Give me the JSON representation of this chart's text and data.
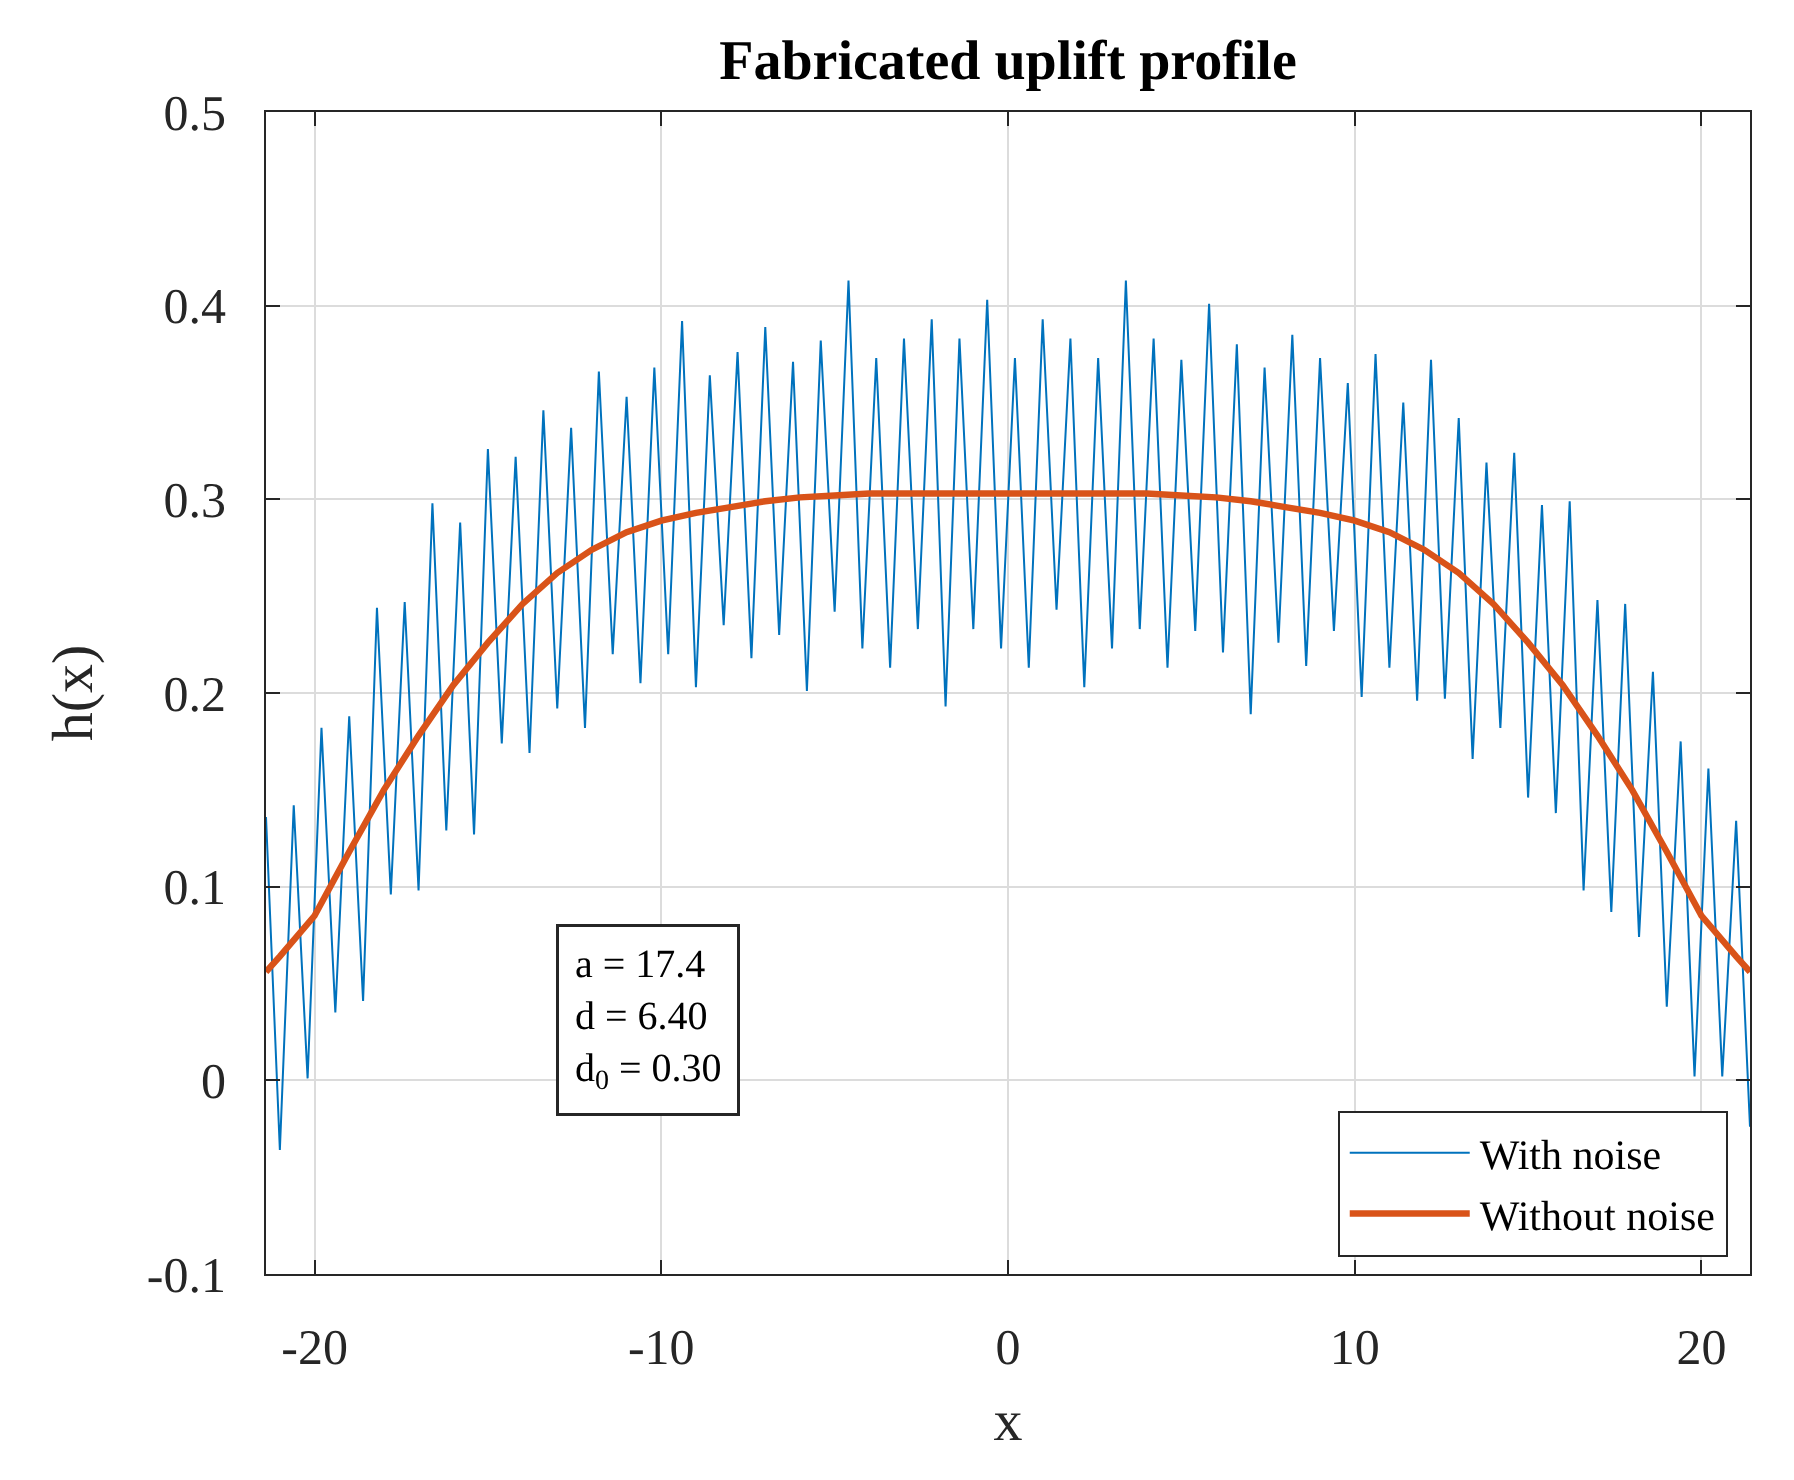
{
  "chart_data": {
    "type": "line",
    "title": "Fabricated uplift profile",
    "xlabel": "x",
    "ylabel": "h(x)",
    "annotations": [
      "a = 17.4",
      "d = 6.40",
      "d$_{0}$ = 0.30"
    ],
    "series": [
      {
        "name": "With noise",
        "color": "#0072bd",
        "x": [
          -21.4,
          -21.0,
          -20.6,
          -20.2,
          -19.8,
          -19.4,
          -19.0,
          -18.6,
          -18.2,
          -17.8,
          -17.4,
          -17.0,
          -16.6,
          -16.2,
          -15.8,
          -15.4,
          -15.0,
          -14.6,
          -14.2,
          -13.8,
          -13.4,
          -13.0,
          -12.6,
          -12.2,
          -11.8,
          -11.4,
          -11.0,
          -10.6,
          -10.2,
          -9.8,
          -9.4,
          -9.0,
          -8.6,
          -8.2,
          -7.8,
          -7.4,
          -7.0,
          -6.6,
          -6.2,
          -5.8,
          -5.4,
          -5.0,
          -4.6,
          -4.2,
          -3.8,
          -3.4,
          -3.0,
          -2.6,
          -2.2,
          -1.8,
          -1.4,
          -1.0,
          -0.6,
          -0.2,
          0.2,
          0.6,
          1.0,
          1.4,
          1.8,
          2.2,
          2.6,
          3.0,
          3.4,
          3.8,
          4.2,
          4.6,
          5.0,
          5.4,
          5.8,
          6.2,
          6.6,
          7.0,
          7.4,
          7.8,
          8.2,
          8.6,
          9.0,
          9.4,
          9.8,
          10.2,
          10.6,
          11.0,
          11.4,
          11.8,
          12.2,
          12.6,
          13.0,
          13.4,
          13.8,
          14.2,
          14.6,
          15.0,
          15.4,
          15.8,
          16.2,
          16.6,
          17.0,
          17.4,
          17.8,
          18.2,
          18.6,
          19.0,
          19.4,
          19.8,
          20.2,
          20.6,
          21.0,
          21.4
        ],
        "values": [
          0.136,
          -0.036,
          0.142,
          0.001,
          0.182,
          0.035,
          0.188,
          0.041,
          0.244,
          0.096,
          0.247,
          0.098,
          0.298,
          0.129,
          0.288,
          0.127,
          0.326,
          0.174,
          0.322,
          0.169,
          0.346,
          0.192,
          0.337,
          0.182,
          0.366,
          0.22,
          0.353,
          0.205,
          0.368,
          0.22,
          0.392,
          0.203,
          0.364,
          0.235,
          0.376,
          0.218,
          0.389,
          0.23,
          0.371,
          0.201,
          0.382,
          0.242,
          0.413,
          0.223,
          0.373,
          0.213,
          0.383,
          0.233,
          0.393,
          0.193,
          0.383,
          0.233,
          0.403,
          0.223,
          0.373,
          0.213,
          0.393,
          0.243,
          0.383,
          0.203,
          0.373,
          0.223,
          0.413,
          0.233,
          0.383,
          0.213,
          0.372,
          0.232,
          0.401,
          0.221,
          0.38,
          0.189,
          0.368,
          0.226,
          0.385,
          0.214,
          0.373,
          0.232,
          0.36,
          0.198,
          0.375,
          0.213,
          0.35,
          0.196,
          0.372,
          0.197,
          0.342,
          0.166,
          0.319,
          0.182,
          0.324,
          0.146,
          0.297,
          0.138,
          0.299,
          0.098,
          0.248,
          0.087,
          0.246,
          0.074,
          0.211,
          0.038,
          0.175,
          0.002,
          0.161,
          0.002,
          0.134,
          -0.024
        ]
      },
      {
        "name": "Without noise",
        "color": "#d95319",
        "x": [
          -21.4,
          -21,
          -20,
          -19,
          -18,
          -17,
          -16,
          -15,
          -14,
          -13,
          -12,
          -11,
          -10,
          -9,
          -8,
          -7,
          -6,
          -5,
          -4,
          -3,
          -2,
          -1,
          0,
          1,
          2,
          3,
          4,
          5,
          6,
          7,
          8,
          9,
          10,
          11,
          12,
          13,
          14,
          15,
          16,
          17,
          18,
          19,
          20,
          21,
          21.4
        ],
        "values": [
          0.056,
          0.064,
          0.085,
          0.118,
          0.15,
          0.178,
          0.204,
          0.226,
          0.246,
          0.262,
          0.274,
          0.283,
          0.289,
          0.293,
          0.296,
          0.299,
          0.301,
          0.302,
          0.303,
          0.303,
          0.303,
          0.303,
          0.303,
          0.303,
          0.303,
          0.303,
          0.303,
          0.302,
          0.301,
          0.299,
          0.296,
          0.293,
          0.289,
          0.283,
          0.274,
          0.262,
          0.246,
          0.226,
          0.204,
          0.178,
          0.15,
          0.118,
          0.085,
          0.064,
          0.056
        ]
      }
    ],
    "xlim": [
      -21.4,
      21.4
    ],
    "ylim": [
      -0.1,
      0.5
    ],
    "xticks": [
      -20,
      -10,
      0,
      10,
      20
    ],
    "yticks": [
      -0.1,
      0,
      0.1,
      0.2,
      0.3,
      0.4,
      0.5
    ],
    "grid": true,
    "legend": "bottom right"
  }
}
